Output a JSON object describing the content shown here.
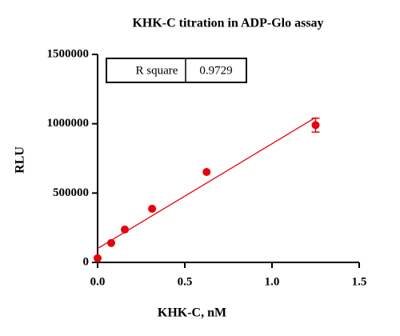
{
  "chart_data": {
    "type": "scatter",
    "title": "KHK-C titration in ADP-Glo assay",
    "x_label": "KHK-C, nM",
    "y_label": "RLU",
    "series": [
      {
        "name": "KHK-C",
        "color": "#e8000b",
        "x": [
          0,
          0.078,
          0.156,
          0.3125,
          0.625,
          1.25
        ],
        "values": [
          30000,
          140000,
          237000,
          387000,
          652000,
          990000
        ],
        "errors": [
          null,
          null,
          null,
          null,
          null,
          50000
        ]
      }
    ],
    "fit": {
      "color": "#e8000b",
      "x": [
        0,
        1.25
      ],
      "values": [
        100000,
        1045000
      ]
    },
    "stats_table": {
      "label": "R square",
      "value": "0.9729"
    },
    "xlim": [
      0,
      1.5
    ],
    "xticks": [
      {
        "value": 0,
        "label": "0.0"
      },
      0.5,
      {
        "value": 1,
        "label": "1.0"
      },
      1.5
    ],
    "ylim": [
      0,
      1500000
    ],
    "yticks": [
      0,
      500000,
      1000000,
      1500000
    ]
  }
}
